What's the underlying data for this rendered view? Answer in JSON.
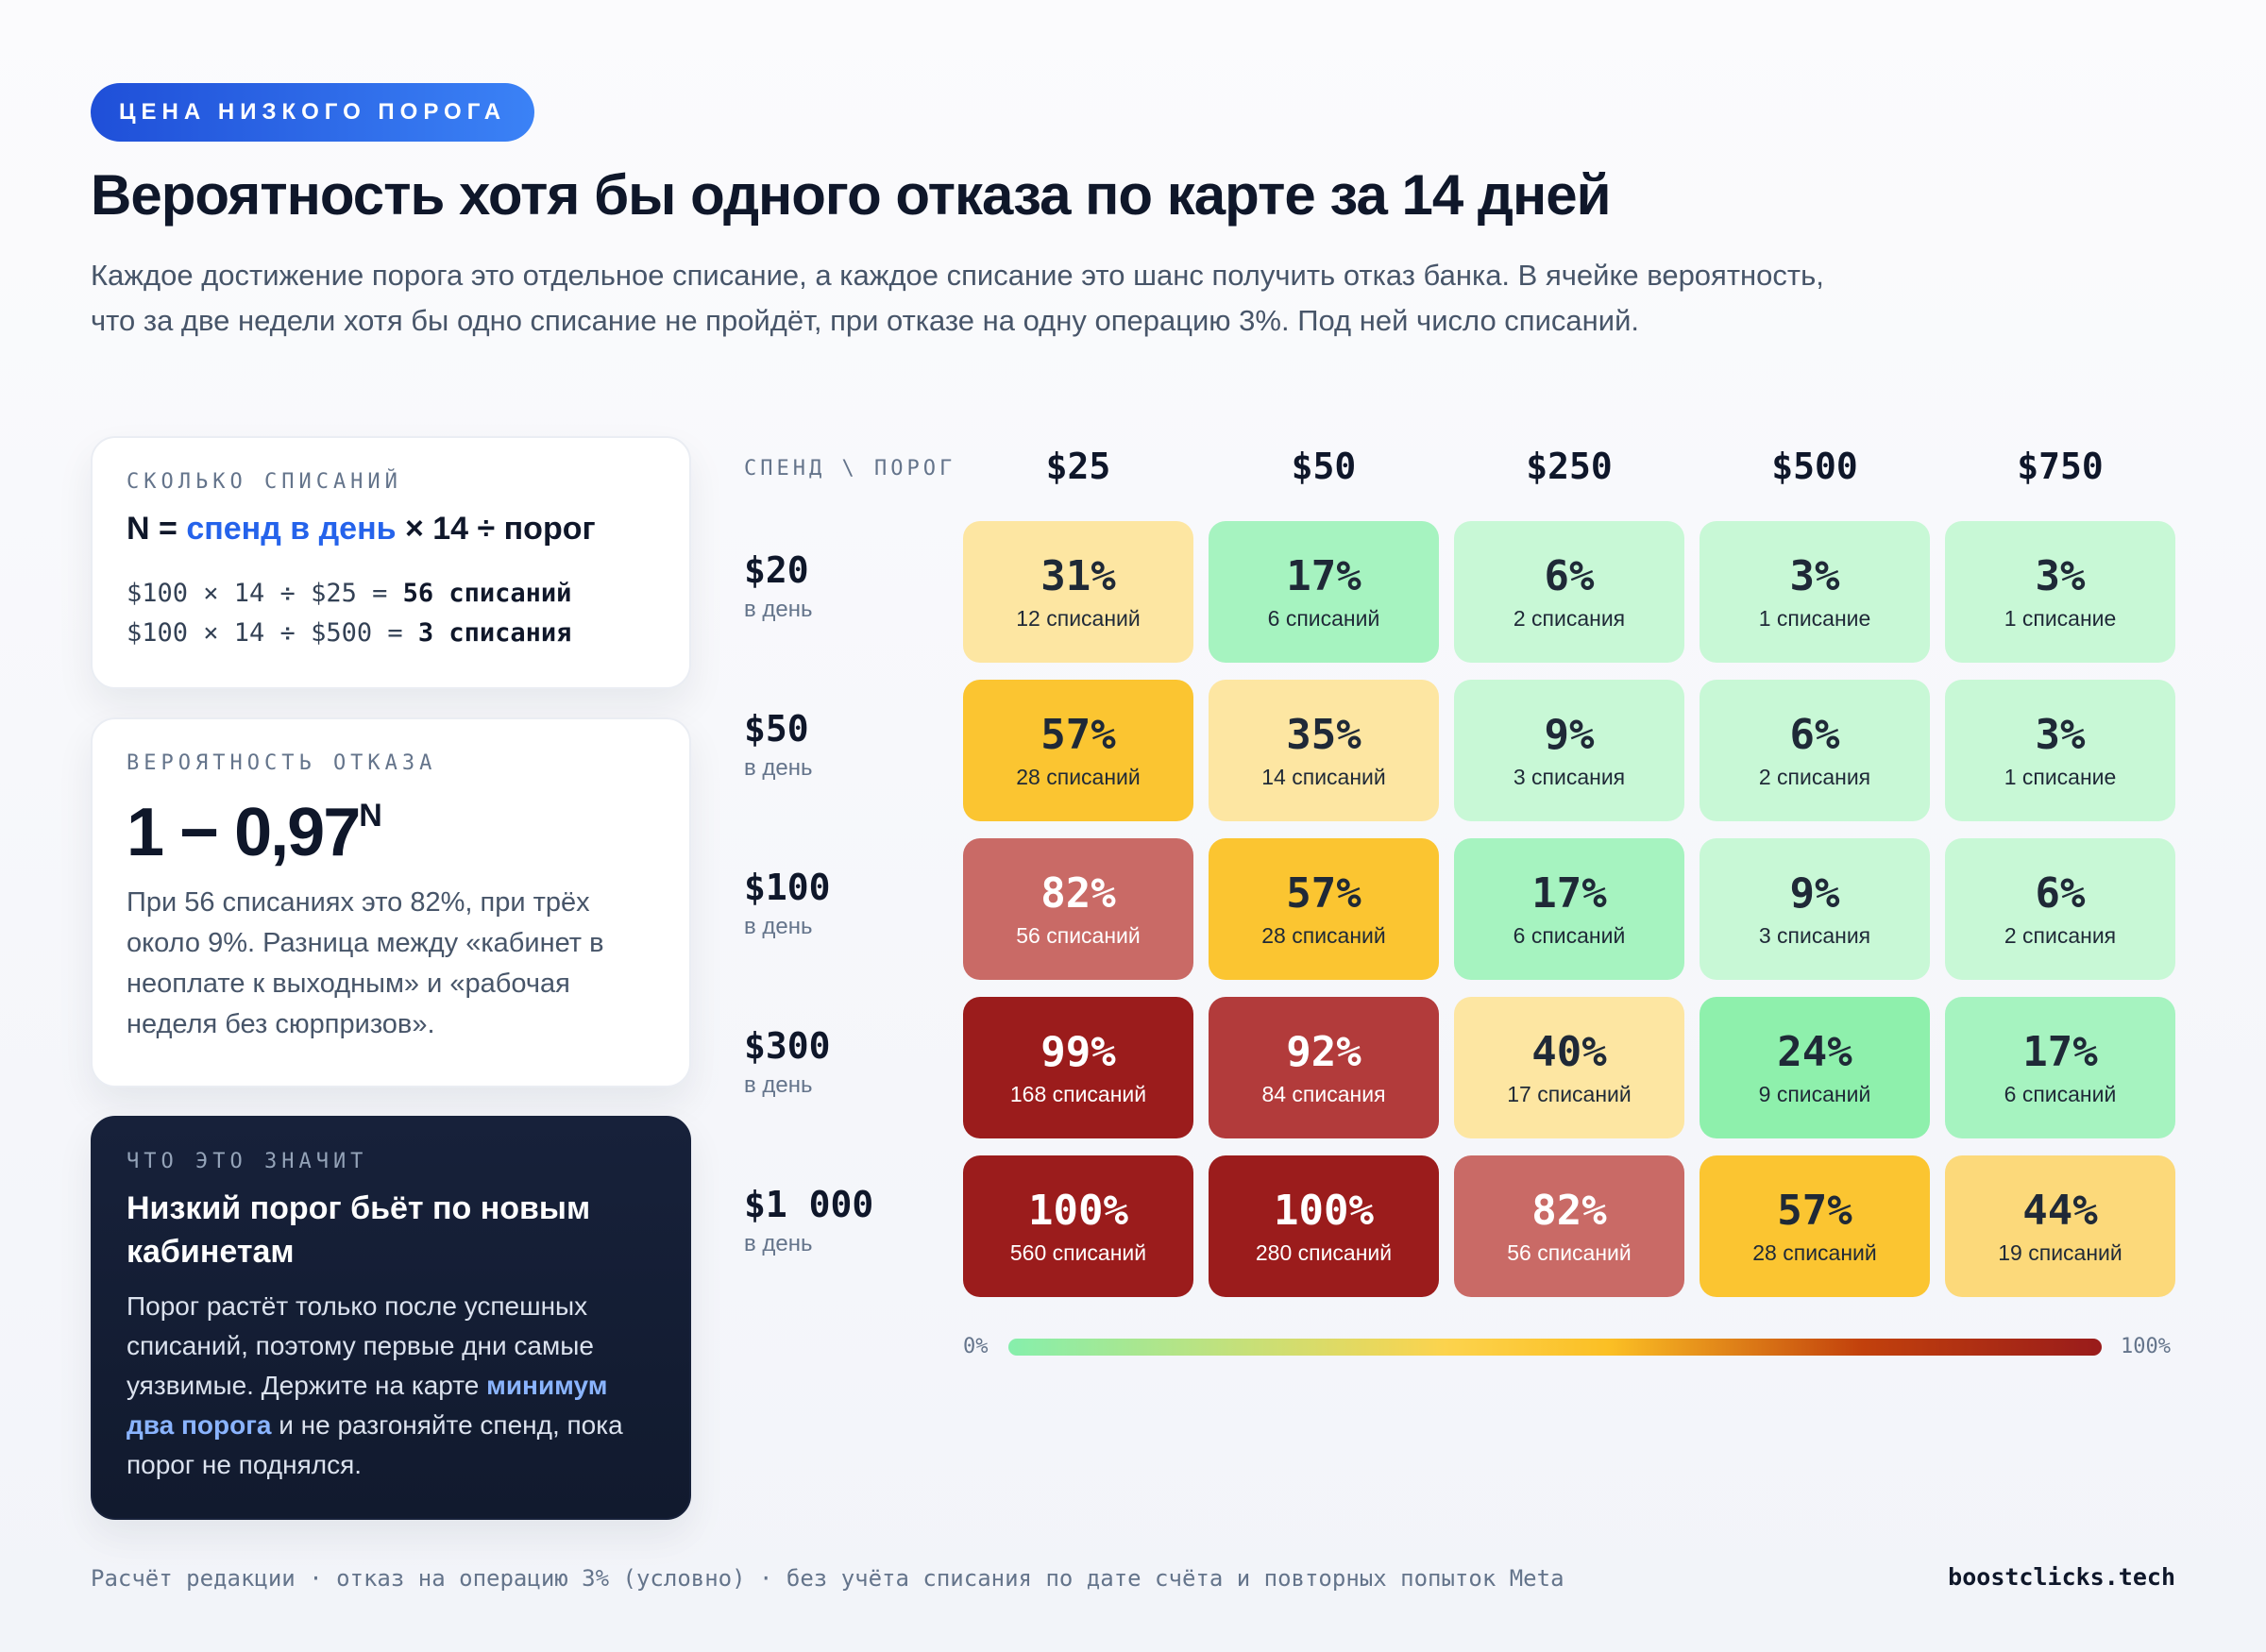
{
  "header": {
    "badge": "ЦЕНА НИЗКОГО ПОРОГА",
    "title": "Вероятность хотя бы одного отказа по карте за 14 дней",
    "subtitle": "Каждое достижение порога это отдельное списание, а каждое списание это шанс получить отказ банка. В ячейке вероятность, что за две недели хотя бы одно списание не пройдёт, при отказе на одну операцию 3%. Под ней число списаний."
  },
  "card_count": {
    "label": "СКОЛЬКО СПИСАНИЙ",
    "formula_prefix": "N = ",
    "formula_accent": "спенд в день",
    "formula_suffix": " × 14 ÷ порог",
    "example1_expr": "$100 × 14 ÷ $25 = ",
    "example1_result": "56 списаний",
    "example2_expr": "$100 × 14 ÷ $500 = ",
    "example2_result": "3 списания"
  },
  "card_probability": {
    "label": "ВЕРОЯТНОСТЬ ОТКАЗА",
    "formula": "1 − 0,97",
    "formula_exp": "N",
    "text": "При 56 списаниях это 82%, при трёх около 9%. Разница между «кабинет в неоплате к выходным» и «рабочая неделя без сюрпризов»."
  },
  "card_meaning": {
    "label": "ЧТО ЭТО ЗНАЧИТ",
    "heading": "Низкий порог бьёт по новым кабинетам",
    "text_before": "Порог растёт только после успешных списаний, поэтому первые дни самые уязвимые. Держите на карте ",
    "text_highlight": "минимум два порога",
    "text_after": " и не разгоняйте спенд, пока порог не поднялся."
  },
  "chart_data": {
    "type": "heatmap",
    "corner_label": "СПЕНД \\ ПОРОГ",
    "columns": [
      "$25",
      "$50",
      "$250",
      "$500",
      "$750"
    ],
    "rows": [
      {
        "label": "$20",
        "unit": "в день"
      },
      {
        "label": "$50",
        "unit": "в день"
      },
      {
        "label": "$100",
        "unit": "в день"
      },
      {
        "label": "$300",
        "unit": "в день"
      },
      {
        "label": "$1 000",
        "unit": "в день"
      }
    ],
    "values": [
      [
        31,
        17,
        6,
        3,
        3
      ],
      [
        57,
        35,
        9,
        6,
        3
      ],
      [
        82,
        57,
        17,
        9,
        6
      ],
      [
        99,
        92,
        40,
        24,
        17
      ],
      [
        100,
        100,
        82,
        57,
        44
      ]
    ],
    "counts": [
      [
        "12 списаний",
        "6 списаний",
        "2 списания",
        "1 списание",
        "1 списание"
      ],
      [
        "28 списаний",
        "14 списаний",
        "3 списания",
        "2 списания",
        "1 списание"
      ],
      [
        "56 списаний",
        "28 списаний",
        "6 списаний",
        "3 списания",
        "2 списания"
      ],
      [
        "168 списаний",
        "84 списания",
        "17 списаний",
        "9 списаний",
        "6 списаний"
      ],
      [
        "560 списаний",
        "280 списаний",
        "56 списаний",
        "28 списаний",
        "19 списаний"
      ]
    ],
    "value_suffix": "%",
    "legend_min": "0%",
    "legend_max": "100%"
  },
  "footer": {
    "note": "Расчёт редакции · отказ на операцию 3% (условно) · без учёта списания по дате счёта и повторных попыток Meta",
    "brand": "boostclicks.tech"
  }
}
